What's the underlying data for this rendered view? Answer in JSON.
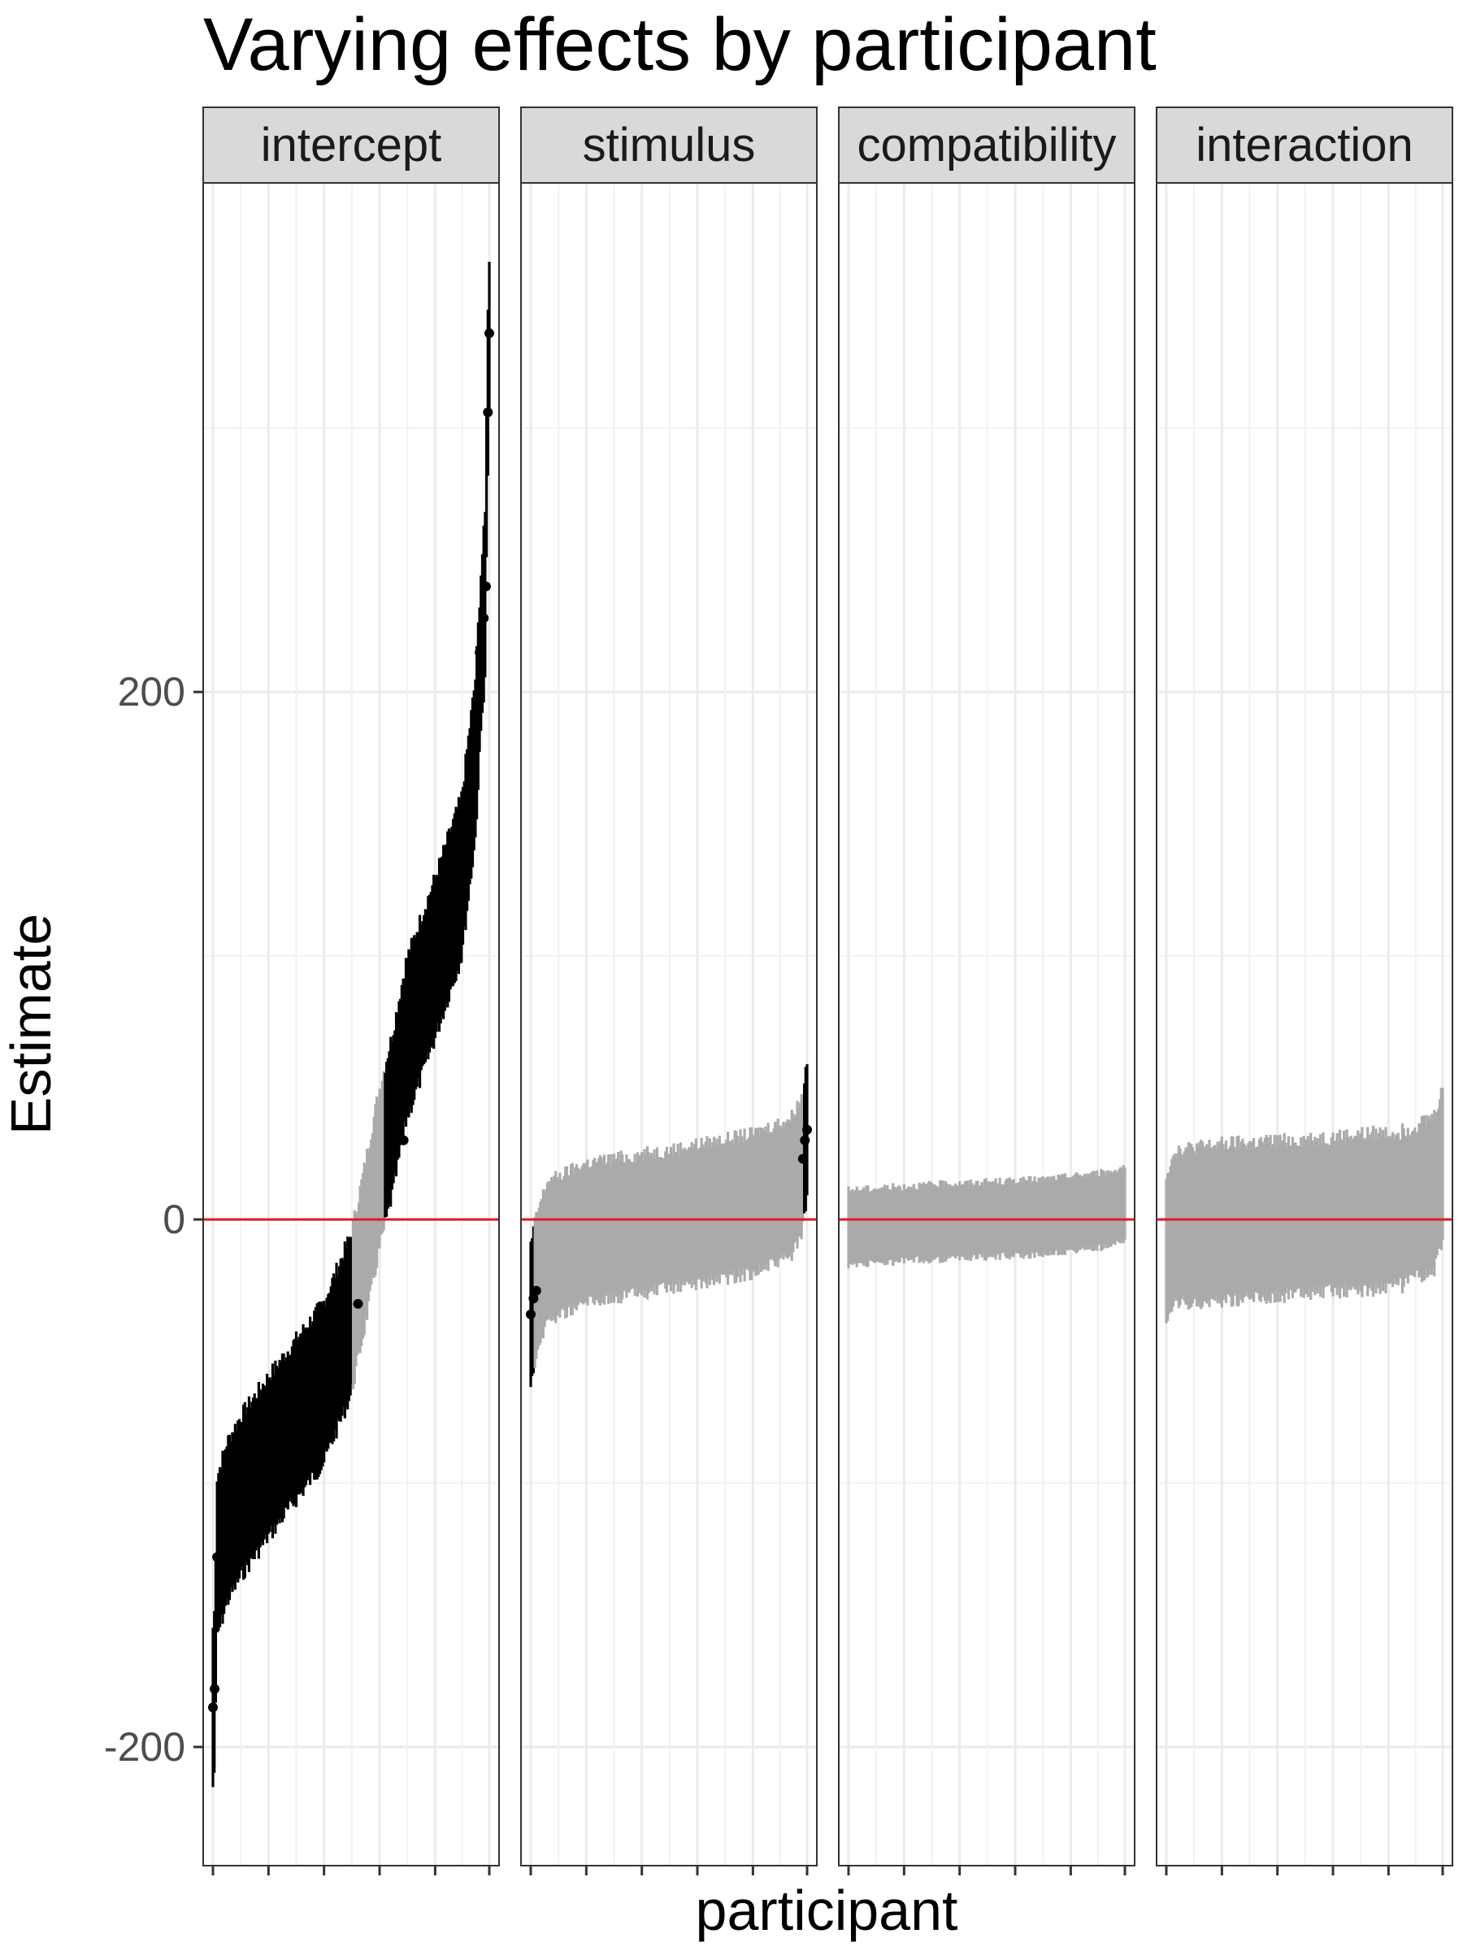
{
  "chart_data": {
    "type": "errorbar",
    "title": "Varying effects by participant",
    "xlabel": "participant",
    "ylabel": "Estimate",
    "ylim": [
      -245,
      393
    ],
    "yticks": [
      -200,
      0,
      200
    ],
    "grid": true,
    "legend": "none",
    "reference_line": {
      "y": 0,
      "color": "#e41a1c"
    },
    "colors": {
      "includes_zero": "#aaaaaa",
      "excludes_zero": "#000000",
      "zero_line": "#e41a1c"
    },
    "participant_count": 200,
    "x_tick_positions": [
      1,
      41,
      81,
      121,
      161,
      200
    ],
    "panels": [
      {
        "name": "intercept",
        "curve": {
          "estimate": [
            [
              0,
              -185
            ],
            [
              0.006,
              -178
            ],
            [
              0.015,
              -128
            ],
            [
              0.05,
              -115
            ],
            [
              0.1,
              -105
            ],
            [
              0.2,
              -90
            ],
            [
              0.3,
              -76
            ],
            [
              0.4,
              -62
            ],
            [
              0.5,
              -36
            ],
            [
              0.55,
              -10
            ],
            [
              0.6,
              18
            ],
            [
              0.65,
              40
            ],
            [
              0.7,
              68
            ],
            [
              0.8,
              98
            ],
            [
              0.9,
              130
            ],
            [
              0.95,
              175
            ],
            [
              0.97,
              215
            ],
            [
              0.985,
              237
            ],
            [
              0.993,
              305
            ],
            [
              1,
              335
            ]
          ]
        },
        "half_width": 30,
        "highlight_points": [
          {
            "rank": 0.0,
            "estimate": -185
          },
          {
            "rank": 0.006,
            "estimate": -178
          },
          {
            "rank": 0.015,
            "estimate": -128
          },
          {
            "rank": 0.525,
            "estimate": -32
          },
          {
            "rank": 0.69,
            "estimate": 30
          },
          {
            "rank": 0.95,
            "estimate": 180
          },
          {
            "rank": 0.965,
            "estimate": 215
          },
          {
            "rank": 0.98,
            "estimate": 228
          },
          {
            "rank": 0.988,
            "estimate": 240
          },
          {
            "rank": 0.995,
            "estimate": 306
          },
          {
            "rank": 1.0,
            "estimate": 336
          }
        ]
      },
      {
        "name": "stimulus",
        "curve": {
          "estimate": [
            [
              0,
              -36
            ],
            [
              0.02,
              -25
            ],
            [
              0.06,
              -12
            ],
            [
              0.2,
              -5
            ],
            [
              0.5,
              0
            ],
            [
              0.8,
              6
            ],
            [
              0.94,
              12
            ],
            [
              0.98,
              20
            ],
            [
              1,
              34
            ]
          ]
        },
        "half_width": 26,
        "highlight_points": [
          {
            "rank": 0.0,
            "estimate": -36
          },
          {
            "rank": 0.01,
            "estimate": -30
          },
          {
            "rank": 0.02,
            "estimate": -27
          },
          {
            "rank": 0.985,
            "estimate": 23
          },
          {
            "rank": 0.992,
            "estimate": 30
          },
          {
            "rank": 1.0,
            "estimate": 34
          }
        ]
      },
      {
        "name": "compatibility",
        "curve": {
          "estimate": [
            [
              0,
              -3
            ],
            [
              0.3,
              -1
            ],
            [
              0.7,
              1
            ],
            [
              0.95,
              4
            ],
            [
              1,
              6
            ]
          ]
        },
        "half_width": 14,
        "highlight_points": []
      },
      {
        "name": "interaction",
        "curve": {
          "estimate": [
            [
              0,
              -12
            ],
            [
              0.03,
              -3
            ],
            [
              0.2,
              -1
            ],
            [
              0.5,
              1
            ],
            [
              0.85,
              4
            ],
            [
              0.97,
              10
            ],
            [
              1,
              21
            ]
          ]
        },
        "half_width": 29,
        "highlight_points": []
      }
    ]
  }
}
